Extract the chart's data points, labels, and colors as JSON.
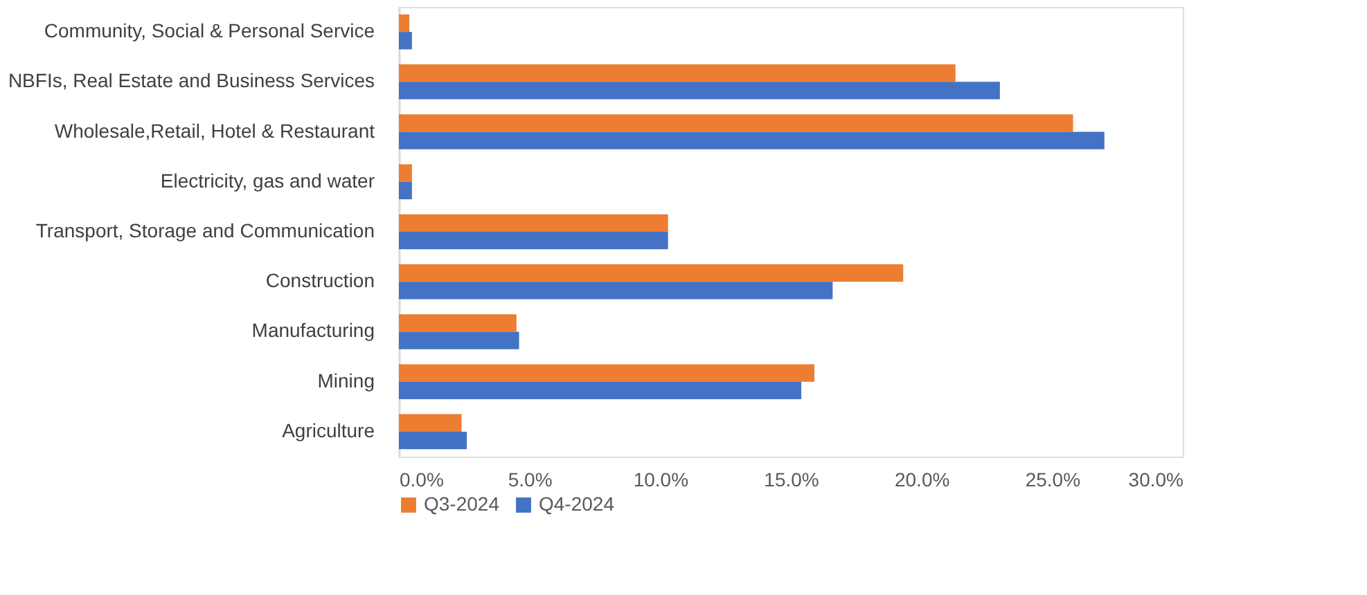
{
  "chart_data": {
    "type": "bar",
    "orientation": "horizontal",
    "categories": [
      "Community, Social & Personal Service",
      "NBFIs, Real Estate and Business Services",
      "Wholesale,Retail, Hotel & Restaurant",
      "Electricity, gas and water",
      "Transport, Storage and Communication",
      "Construction",
      "Manufacturing",
      "Mining",
      "Agriculture"
    ],
    "series": [
      {
        "name": "Q3-2024",
        "color": "#ed7d31",
        "values": [
          0.4,
          21.3,
          25.8,
          0.5,
          10.3,
          19.3,
          4.5,
          15.9,
          2.4
        ]
      },
      {
        "name": "Q4-2024",
        "color": "#4472c4",
        "values": [
          0.5,
          23.0,
          27.0,
          0.5,
          10.3,
          16.6,
          4.6,
          15.4,
          2.6
        ]
      }
    ],
    "xlim": [
      0,
      30
    ],
    "xticks": [
      {
        "value": 0,
        "label": "0.0%"
      },
      {
        "value": 5,
        "label": "5.0%"
      },
      {
        "value": 10,
        "label": "10.0%"
      },
      {
        "value": 15,
        "label": "15.0%"
      },
      {
        "value": 20,
        "label": "20.0%"
      },
      {
        "value": 25,
        "label": "25.0%"
      },
      {
        "value": 30,
        "label": "30.0%"
      }
    ],
    "grid": false,
    "legend": "bottom"
  }
}
